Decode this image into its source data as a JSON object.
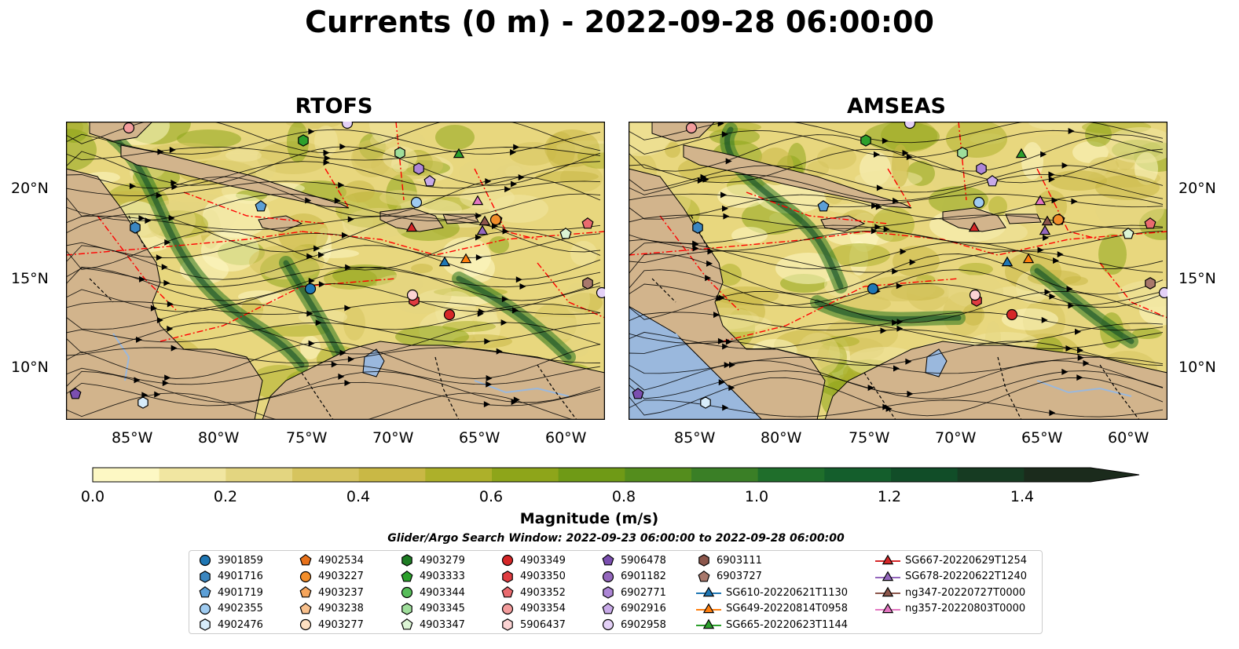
{
  "title": "Currents (0 m) - 2022-09-28 06:00:00",
  "panels": [
    {
      "title": "RTOFS"
    },
    {
      "title": "AMSEAS"
    }
  ],
  "lat_ticks": [
    "20°N",
    "15°N",
    "10°N"
  ],
  "lon_ticks": [
    "85°W",
    "80°W",
    "75°W",
    "70°W",
    "65°W",
    "60°W"
  ],
  "colorbar": {
    "title": "Magnitude (m/s)",
    "ticks": [
      "0.0",
      "0.2",
      "0.4",
      "0.6",
      "0.8",
      "1.0",
      "1.2",
      "1.4"
    ],
    "range": [
      0,
      1.5
    ],
    "step": 0.1,
    "extend": "max",
    "colors": [
      "#fdf8c4",
      "#f1e6a1",
      "#e3d580",
      "#d6c45e",
      "#c9b845",
      "#adb02a",
      "#8ea51a",
      "#6f9a16",
      "#548d1d",
      "#3a7f26",
      "#1f6e2b",
      "#145e2c",
      "#114d28",
      "#163b22",
      "#1b2b1c"
    ]
  },
  "map": {
    "land": "#d2b48c",
    "ocean_base": "#e8d77e",
    "lake": "#9ab8dd",
    "eez_line": "#ff0000",
    "contour": "#555555"
  },
  "search_window": "Glider/Argo Search Window: 2022-09-23 06:00:00 to 2022-09-28 06:00:00",
  "legend": {
    "columns": [
      [
        {
          "label": "3901859",
          "marker": "circle",
          "color": "#1f77b4"
        },
        {
          "label": "4901716",
          "marker": "hexagon",
          "color": "#3b86c0"
        },
        {
          "label": "4901719",
          "marker": "pentagon",
          "color": "#5c9fd6"
        },
        {
          "label": "4902355",
          "marker": "circle",
          "color": "#9fcbf0"
        },
        {
          "label": "4902476",
          "marker": "hexagon",
          "color": "#d7ecfa"
        }
      ],
      [
        {
          "label": "4902534",
          "marker": "pentagon",
          "color": "#e8711a"
        },
        {
          "label": "4903227",
          "marker": "circle",
          "color": "#f28e2b"
        },
        {
          "label": "4903237",
          "marker": "pentagon",
          "color": "#f5a55c"
        },
        {
          "label": "4903238",
          "marker": "pentagon",
          "color": "#f8c08c"
        },
        {
          "label": "4903277",
          "marker": "circle",
          "color": "#fde0c2"
        }
      ],
      [
        {
          "label": "4903279",
          "marker": "hexagon",
          "color": "#1e7d24"
        },
        {
          "label": "4903333",
          "marker": "pentagon",
          "color": "#2ca02c"
        },
        {
          "label": "4903344",
          "marker": "circle",
          "color": "#57bd5a"
        },
        {
          "label": "4903345",
          "marker": "hexagon",
          "color": "#9fde9b"
        },
        {
          "label": "4903347",
          "marker": "pentagon",
          "color": "#dcf5d5"
        }
      ],
      [
        {
          "label": "4903349",
          "marker": "circle",
          "color": "#d62728"
        },
        {
          "label": "4903350",
          "marker": "hexagon",
          "color": "#e03c41"
        },
        {
          "label": "4903352",
          "marker": "pentagon",
          "color": "#ea6b6f"
        },
        {
          "label": "4903354",
          "marker": "circle",
          "color": "#f39c9c"
        },
        {
          "label": "5906437",
          "marker": "hexagon",
          "color": "#fbd3d3"
        }
      ],
      [
        {
          "label": "5906478",
          "marker": "pentagon",
          "color": "#7b4fb0"
        },
        {
          "label": "6901182",
          "marker": "circle",
          "color": "#9467bd"
        },
        {
          "label": "6902771",
          "marker": "hexagon",
          "color": "#ad86d6"
        },
        {
          "label": "6902916",
          "marker": "pentagon",
          "color": "#c8aae8"
        },
        {
          "label": "6902958",
          "marker": "circle",
          "color": "#e4d1f7"
        }
      ],
      [
        {
          "label": "6903111",
          "marker": "hexagon",
          "color": "#8c564b"
        },
        {
          "label": "6903727",
          "marker": "pentagon",
          "color": "#a8786c"
        },
        {
          "label": "SG610-20220621T1130",
          "marker": "triangle-line",
          "color": "#1f77b4"
        },
        {
          "label": "SG649-20220814T0958",
          "marker": "triangle-line",
          "color": "#ff7f0e"
        },
        {
          "label": "SG665-20220623T1144",
          "marker": "triangle-line",
          "color": "#2ca02c"
        }
      ],
      [
        {
          "label": "SG667-20220629T1254",
          "marker": "triangle-line",
          "color": "#d62728"
        },
        {
          "label": "SG678-20220622T1240",
          "marker": "triangle-line",
          "color": "#9467bd"
        },
        {
          "label": "ng347-20220727T0000",
          "marker": "triangle-line",
          "color": "#8c564b"
        },
        {
          "label": "ng357-20220803T0000",
          "marker": "triangle-line",
          "color": "#e377c2"
        }
      ]
    ]
  }
}
